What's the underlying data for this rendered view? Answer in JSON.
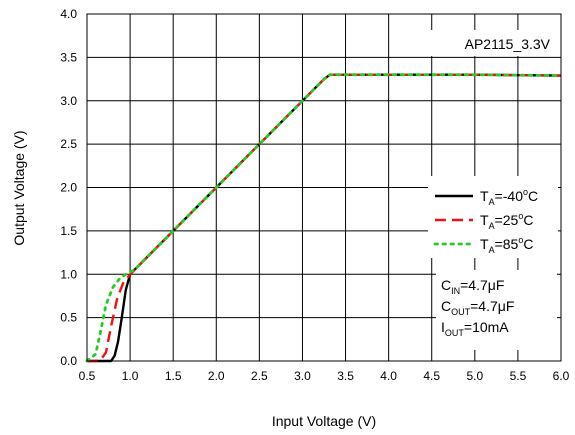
{
  "chart_data": {
    "type": "line",
    "xlabel": "Input Voltage (V)",
    "ylabel": "Output Voltage (V)",
    "xlim": [
      0.5,
      6.0
    ],
    "ylim": [
      0.0,
      4.0
    ],
    "grid": true,
    "legend_position": "right",
    "x_ticks": [
      "0.5",
      "1.0",
      "1.5",
      "2.0",
      "2.5",
      "3.0",
      "3.5",
      "4.0",
      "4.5",
      "5.0",
      "5.5",
      "6.0"
    ],
    "y_ticks": [
      "0.0",
      "0.5",
      "1.0",
      "1.5",
      "2.0",
      "2.5",
      "3.0",
      "3.5",
      "4.0"
    ],
    "device_label": "AP2115_3.3V",
    "series": [
      {
        "name": "T_A=-40°C",
        "legend": {
          "main": "T",
          "sub": "A",
          "rest": "=-40",
          "sup": "o",
          "unit": "C"
        },
        "color": "#000000",
        "style": "solid",
        "x": [
          0.5,
          0.78,
          0.82,
          0.86,
          0.9,
          0.95,
          1.0,
          1.05,
          1.5,
          2.0,
          2.5,
          3.0,
          3.25,
          3.32,
          3.4,
          4.0,
          5.0,
          6.0
        ],
        "y": [
          0.0,
          0.0,
          0.06,
          0.22,
          0.48,
          0.82,
          1.0,
          1.05,
          1.5,
          2.0,
          2.5,
          3.0,
          3.25,
          3.3,
          3.3,
          3.3,
          3.3,
          3.29
        ]
      },
      {
        "name": "T_A=25°C",
        "legend": {
          "main": "T",
          "sub": "A",
          "rest": "=25",
          "sup": "o",
          "unit": "C"
        },
        "color": "#ee1111",
        "style": "dashed",
        "x": [
          0.5,
          0.65,
          0.72,
          0.78,
          0.85,
          0.92,
          1.0,
          1.05,
          1.5,
          2.0,
          2.5,
          3.0,
          3.25,
          3.32,
          3.4,
          4.0,
          5.0,
          6.0
        ],
        "y": [
          0.0,
          0.0,
          0.1,
          0.4,
          0.72,
          0.9,
          1.0,
          1.05,
          1.5,
          2.0,
          2.5,
          3.0,
          3.25,
          3.3,
          3.3,
          3.3,
          3.3,
          3.29
        ]
      },
      {
        "name": "T_A=85°C",
        "legend": {
          "main": "T",
          "sub": "A",
          "rest": "=85",
          "sup": "o",
          "unit": "C"
        },
        "color": "#22cc22",
        "style": "dotted",
        "x": [
          0.5,
          0.6,
          0.66,
          0.72,
          0.8,
          0.88,
          0.95,
          1.05,
          1.5,
          2.0,
          2.5,
          3.0,
          3.25,
          3.32,
          3.4,
          4.0,
          5.0,
          6.0
        ],
        "y": [
          0.0,
          0.08,
          0.35,
          0.65,
          0.85,
          0.95,
          1.0,
          1.05,
          1.5,
          2.0,
          2.5,
          3.0,
          3.25,
          3.3,
          3.3,
          3.3,
          3.3,
          3.29
        ]
      }
    ],
    "conditions": [
      {
        "main": "C",
        "sub": "IN",
        "rest": "=4.7",
        "mu": "μ",
        "unit": "F"
      },
      {
        "main": "C",
        "sub": "OUT",
        "rest": "=4.7",
        "mu": "μ",
        "unit": "F"
      },
      {
        "main": "I",
        "sub": "OUT",
        "rest": "=10mA",
        "mu": "",
        "unit": ""
      }
    ]
  }
}
